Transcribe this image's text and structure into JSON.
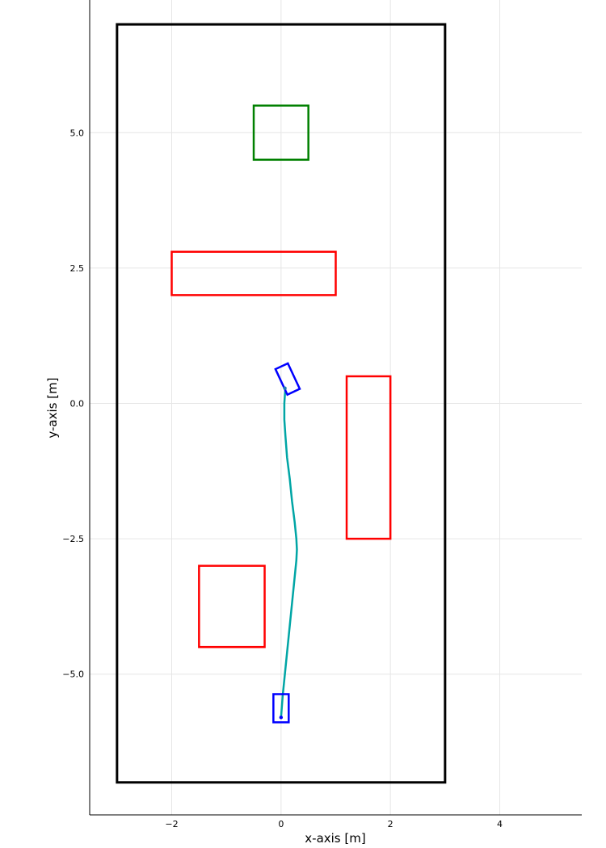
{
  "chart_data": {
    "type": "scatter",
    "xlabel": "x-axis [m]",
    "ylabel": "y-axis [m]",
    "xlim": [
      -3.5,
      5.5
    ],
    "ylim": [
      -7.6,
      7.45
    ],
    "x_ticks": [
      -2,
      0,
      2,
      4
    ],
    "x_tick_labels": [
      "−2",
      "0",
      "2",
      "4"
    ],
    "y_ticks": [
      -5.0,
      -2.5,
      0.0,
      2.5,
      5.0
    ],
    "y_tick_labels": [
      "−5.0",
      "−2.5",
      "0.0",
      "2.5",
      "5.0"
    ],
    "grid": true,
    "boundary": {
      "x": [
        -3,
        3
      ],
      "y": [
        -7,
        7
      ],
      "color": "#000000"
    },
    "goal": {
      "x": [
        -0.5,
        0.5
      ],
      "y": [
        4.5,
        5.5
      ],
      "color": "#008000"
    },
    "obstacles": [
      {
        "x": [
          -2,
          1
        ],
        "y": [
          2,
          2.8
        ],
        "color": "#ff0000"
      },
      {
        "x": [
          1.2,
          2
        ],
        "y": [
          -2.5,
          0.5
        ],
        "color": "#ff0000"
      },
      {
        "x": [
          -1.5,
          -0.3
        ],
        "y": [
          -4.5,
          -3
        ],
        "color": "#ff0000"
      }
    ],
    "trajectory": {
      "color": "#00a5a5",
      "x": [
        0.0,
        0.03,
        0.07,
        0.11,
        0.15,
        0.19,
        0.23,
        0.26,
        0.28,
        0.29,
        0.28,
        0.25,
        0.2,
        0.16,
        0.11,
        0.08,
        0.06,
        0.06,
        0.07,
        0.08
      ],
      "y": [
        -5.8,
        -5.4,
        -5.0,
        -4.6,
        -4.2,
        -3.8,
        -3.4,
        -3.1,
        -2.9,
        -2.7,
        -2.5,
        -2.2,
        -1.8,
        -1.4,
        -1.0,
        -0.6,
        -0.3,
        0.0,
        0.15,
        0.28
      ]
    },
    "robots": [
      {
        "cx": 0.0,
        "cy": -5.63,
        "w": 0.28,
        "h": 0.52,
        "angle": 0,
        "color": "#0000ff",
        "dot": [
          0.0,
          -5.8
        ]
      },
      {
        "cx": 0.12,
        "cy": 0.45,
        "w": 0.25,
        "h": 0.52,
        "angle": -25,
        "color": "#0000ff",
        "dot": [
          0.07,
          0.28
        ]
      }
    ]
  }
}
